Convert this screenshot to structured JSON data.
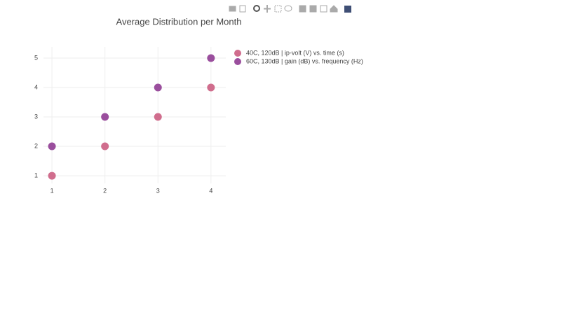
{
  "chart_data": {
    "type": "scatter",
    "title": "Average Distribution per Month",
    "x": [
      1,
      2,
      3,
      4
    ],
    "series": [
      {
        "name": "40C, 120dB | ip-volt (V) vs. time (s)",
        "color": "#d06d8d",
        "values": [
          1,
          2,
          3,
          4
        ]
      },
      {
        "name": "60C, 130dB | gain (dB) vs. frequency (Hz)",
        "color": "#9a4e9d",
        "values": [
          2,
          3,
          4,
          5
        ]
      }
    ],
    "xlim": [
      0.84,
      4.28
    ],
    "ylim": [
      0.74,
      5.38
    ],
    "xticks": [
      1,
      2,
      3,
      4
    ],
    "yticks": [
      1,
      2,
      3,
      4,
      5
    ],
    "grid": true,
    "legend": "right"
  }
}
